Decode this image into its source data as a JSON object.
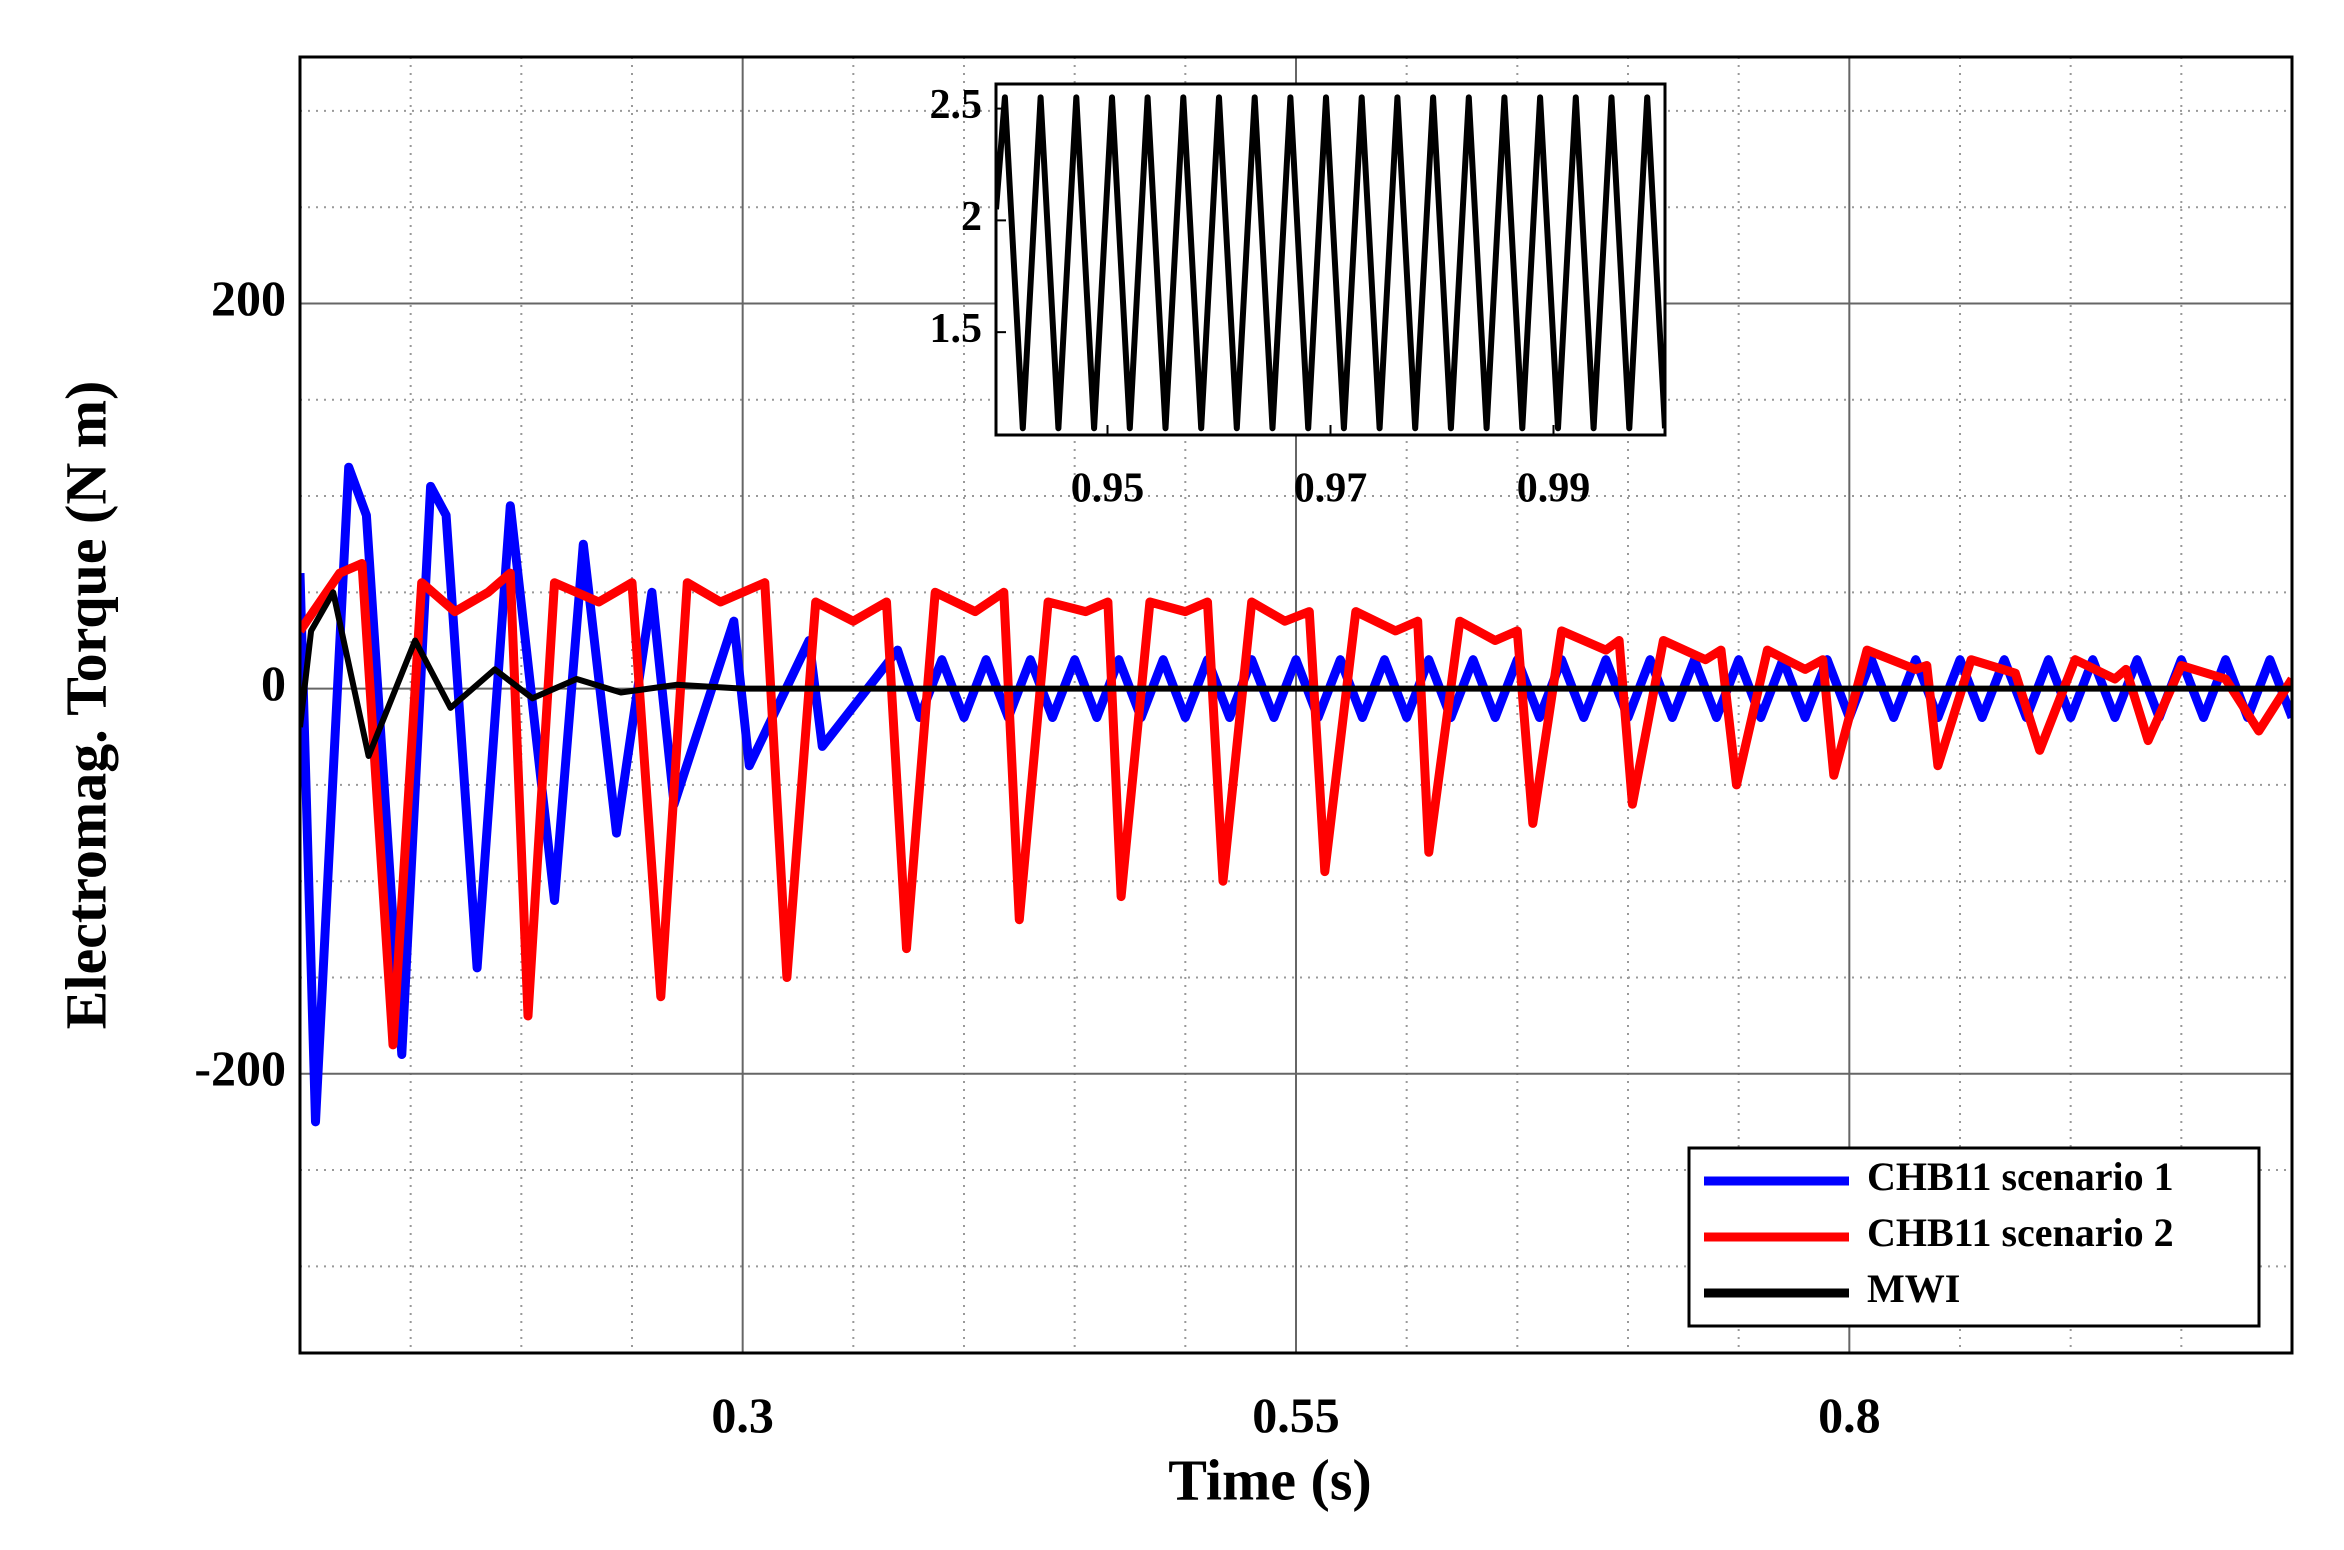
{
  "chart_data": [
    {
      "type": "line",
      "xlabel": "Time (s)",
      "ylabel": "Electromag. Torque (N m)",
      "xlim": [
        0.1,
        1.0
      ],
      "ylim": [
        -345,
        328
      ],
      "xticks": [
        0.3,
        0.55,
        0.8
      ],
      "yticks": [
        -200,
        0,
        200
      ],
      "xminor": [
        0.15,
        0.2,
        0.25,
        0.35,
        0.4,
        0.45,
        0.5,
        0.6,
        0.65,
        0.7,
        0.75,
        0.85,
        0.9,
        0.95
      ],
      "yminor": [
        -300,
        -250,
        -150,
        -100,
        -50,
        50,
        100,
        150,
        250,
        300
      ],
      "grid": true,
      "legend": "lower right",
      "series": [
        {
          "name": "CHB11 scenario 1",
          "color": "#0000ff",
          "x": [
            0.1,
            0.107,
            0.122,
            0.13,
            0.146,
            0.159,
            0.166,
            0.18,
            0.195,
            0.215,
            0.228,
            0.243,
            0.259,
            0.269,
            0.296,
            0.303,
            0.33,
            0.336,
            0.37,
            0.38,
            0.39,
            0.4,
            0.41,
            0.42,
            0.43,
            0.44,
            0.45,
            0.46,
            0.47,
            0.48,
            0.49,
            0.5,
            0.51,
            0.52,
            0.53,
            0.54,
            0.55,
            0.56,
            0.57,
            0.58,
            0.59,
            0.6,
            0.61,
            0.62,
            0.63,
            0.64,
            0.65,
            0.66,
            0.67,
            0.68,
            0.69,
            0.7,
            0.71,
            0.72,
            0.73,
            0.74,
            0.75,
            0.76,
            0.77,
            0.78,
            0.79,
            0.8,
            0.81,
            0.82,
            0.83,
            0.84,
            0.85,
            0.86,
            0.87,
            0.88,
            0.89,
            0.9,
            0.91,
            0.92,
            0.93,
            0.94,
            0.95,
            0.96,
            0.97,
            0.98,
            0.99,
            1.0
          ],
          "values": [
            60,
            -225,
            115,
            90,
            -190,
            105,
            90,
            -145,
            95,
            -110,
            75,
            -75,
            50,
            -60,
            35,
            -40,
            25,
            -30,
            20,
            -15,
            15,
            -15,
            15,
            -15,
            15,
            -15,
            15,
            -15,
            15,
            -15,
            15,
            -15,
            15,
            -15,
            15,
            -15,
            15,
            -15,
            15,
            -15,
            15,
            -15,
            15,
            -15,
            15,
            -15,
            15,
            -15,
            15,
            -15,
            15,
            -15,
            15,
            -15,
            15,
            -15,
            15,
            -15,
            15,
            -15,
            15,
            -15,
            15,
            -15,
            15,
            -15,
            15,
            -15,
            15,
            -15,
            15,
            -15,
            15,
            -15,
            15,
            -15,
            15,
            -15,
            15,
            -15,
            15,
            -15
          ]
        },
        {
          "name": "CHB11 scenario 2",
          "color": "#ff0000",
          "x": [
            0.1,
            0.118,
            0.128,
            0.142,
            0.155,
            0.17,
            0.185,
            0.195,
            0.203,
            0.215,
            0.235,
            0.25,
            0.263,
            0.275,
            0.29,
            0.31,
            0.32,
            0.333,
            0.35,
            0.365,
            0.374,
            0.387,
            0.405,
            0.418,
            0.425,
            0.438,
            0.455,
            0.465,
            0.471,
            0.484,
            0.5,
            0.51,
            0.517,
            0.53,
            0.545,
            0.556,
            0.563,
            0.577,
            0.595,
            0.605,
            0.61,
            0.624,
            0.64,
            0.65,
            0.657,
            0.67,
            0.69,
            0.696,
            0.702,
            0.716,
            0.735,
            0.742,
            0.749,
            0.763,
            0.78,
            0.788,
            0.793,
            0.808,
            0.83,
            0.835,
            0.84,
            0.855,
            0.875,
            0.886,
            0.902,
            0.92,
            0.925,
            0.935,
            0.95,
            0.97,
            0.985,
            1.0
          ],
          "values": [
            30,
            60,
            65,
            -185,
            55,
            40,
            50,
            60,
            -170,
            55,
            45,
            55,
            -160,
            55,
            45,
            55,
            -150,
            45,
            35,
            45,
            -135,
            50,
            40,
            50,
            -120,
            45,
            40,
            45,
            -108,
            45,
            40,
            45,
            -100,
            45,
            35,
            40,
            -95,
            40,
            30,
            35,
            -85,
            35,
            25,
            30,
            -70,
            30,
            20,
            25,
            -60,
            25,
            15,
            20,
            -50,
            20,
            10,
            15,
            -45,
            20,
            10,
            12,
            -40,
            15,
            8,
            -32,
            15,
            5,
            10,
            -27,
            12,
            5,
            -22,
            5
          ]
        },
        {
          "name": "MWI",
          "color": "#000000",
          "x": [
            0.1,
            0.105,
            0.115,
            0.131,
            0.152,
            0.168,
            0.188,
            0.205,
            0.225,
            0.245,
            0.27,
            0.3,
            1.0
          ],
          "values": [
            -20,
            30,
            50,
            -35,
            25,
            -10,
            10,
            -5,
            5,
            -2,
            2,
            0,
            0
          ]
        }
      ]
    },
    {
      "type": "line",
      "xlim": [
        0.94,
        1.0
      ],
      "ylim": [
        1.04,
        2.61
      ],
      "xticks": [
        0.95,
        0.97,
        0.99
      ],
      "yticks": [
        1.5,
        2,
        2.5
      ],
      "series": [
        {
          "color": "#000000",
          "x": [
            0.94,
            0.9408,
            0.9424,
            0.944,
            0.9456,
            0.9472,
            0.9488,
            0.9504,
            0.952,
            0.9536,
            0.9552,
            0.9568,
            0.9584,
            0.96,
            0.9616,
            0.9632,
            0.9648,
            0.9664,
            0.968,
            0.9696,
            0.9712,
            0.9728,
            0.9744,
            0.976,
            0.9776,
            0.9792,
            0.9808,
            0.9824,
            0.984,
            0.9856,
            0.9872,
            0.9888,
            0.9904,
            0.992,
            0.9936,
            0.9952,
            0.9968,
            0.9984,
            1.0
          ],
          "values": [
            2.05,
            2.55,
            1.07,
            2.55,
            1.07,
            2.55,
            1.07,
            2.55,
            1.07,
            2.55,
            1.07,
            2.55,
            1.07,
            2.55,
            1.07,
            2.55,
            1.07,
            2.55,
            1.07,
            2.55,
            1.07,
            2.55,
            1.07,
            2.55,
            1.07,
            2.55,
            1.07,
            2.55,
            1.07,
            2.55,
            1.07,
            2.55,
            1.07,
            2.55,
            1.07,
            2.55,
            1.07,
            2.55,
            1.07
          ]
        }
      ]
    }
  ]
}
